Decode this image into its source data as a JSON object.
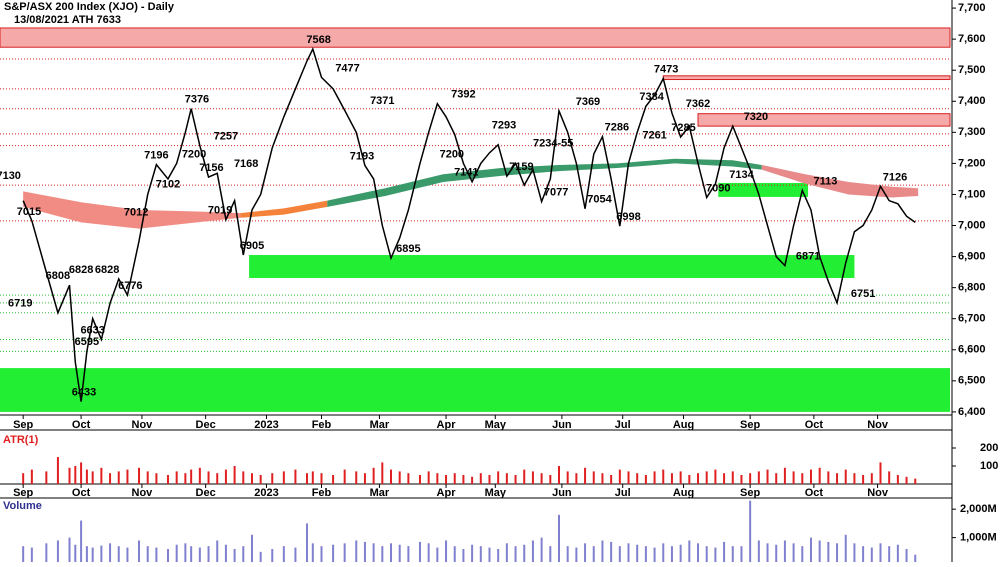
{
  "chart_data": {
    "type": "line",
    "title": "S&P/ASX 200 Index (XJO) - Daily",
    "subtitle": "13/08/2021 ATH 7633",
    "xlim": [
      -8,
      320
    ],
    "xticks": [
      {
        "value": 0,
        "label": "Sep"
      },
      {
        "value": 20,
        "label": "Oct"
      },
      {
        "value": 41,
        "label": "Nov"
      },
      {
        "value": 63,
        "label": "Dec"
      },
      {
        "value": 84,
        "label": "2023"
      },
      {
        "value": 103,
        "label": "Feb"
      },
      {
        "value": 123,
        "label": "Mar"
      },
      {
        "value": 146,
        "label": "Apr"
      },
      {
        "value": 163,
        "label": "May"
      },
      {
        "value": 186,
        "label": "Jun"
      },
      {
        "value": 207,
        "label": "Jul"
      },
      {
        "value": 228,
        "label": "Aug"
      },
      {
        "value": 251,
        "label": "Sep"
      },
      {
        "value": 273,
        "label": "Oct"
      },
      {
        "value": 295,
        "label": "Nov"
      }
    ],
    "ylim": [
      6390,
      7726
    ],
    "yticks": [
      {
        "value": 7700,
        "label": "7,700"
      },
      {
        "value": 7600,
        "label": "7,600"
      },
      {
        "value": 7500,
        "label": "7,500"
      },
      {
        "value": 7400,
        "label": "7,400"
      },
      {
        "value": 7300,
        "label": "7,300"
      },
      {
        "value": 7200,
        "label": "7,200"
      },
      {
        "value": 7100,
        "label": "7,100"
      },
      {
        "value": 7000,
        "label": "7,000"
      },
      {
        "value": 6900,
        "label": "6,900"
      },
      {
        "value": 6800,
        "label": "6,800"
      },
      {
        "value": 6700,
        "label": "6,700"
      },
      {
        "value": 6600,
        "label": "6,600"
      },
      {
        "value": 6500,
        "label": "6,500"
      },
      {
        "value": 6400,
        "label": "6,400"
      }
    ],
    "x": [
      0,
      3,
      8,
      12,
      16,
      18,
      20,
      22,
      24,
      27,
      30,
      33,
      36,
      40,
      43,
      46,
      50,
      53,
      56,
      58,
      61,
      64,
      67,
      70,
      73,
      76,
      79,
      82,
      86,
      90,
      94,
      98,
      100,
      103,
      107,
      111,
      115,
      118,
      121,
      124,
      127,
      130,
      133,
      137,
      140,
      143,
      146,
      149,
      152,
      155,
      158,
      161,
      164,
      167,
      170,
      173,
      176,
      179,
      182,
      185,
      188,
      191,
      194,
      197,
      200,
      203,
      206,
      209,
      212,
      215,
      218,
      221,
      224,
      227,
      230,
      233,
      236,
      239,
      242,
      245,
      248,
      251,
      254,
      257,
      260,
      263,
      266,
      269,
      272,
      275,
      278,
      281,
      284,
      287,
      290,
      293,
      296,
      299,
      302,
      305,
      308
    ],
    "series": [
      {
        "color": "#000000",
        "values": [
          7080,
          7015,
          6850,
          6719,
          6808,
          6560,
          6433,
          6595,
          6700,
          6633,
          6750,
          6828,
          6776,
          6950,
          7100,
          7196,
          7150,
          7200,
          7300,
          7376,
          7257,
          7156,
          7168,
          7019,
          7080,
          6905,
          7050,
          7100,
          7250,
          7350,
          7440,
          7530,
          7568,
          7477,
          7440,
          7371,
          7300,
          7193,
          7150,
          7000,
          6895,
          6960,
          7050,
          7200,
          7300,
          7392,
          7350,
          7293,
          7200,
          7141,
          7200,
          7234,
          7260,
          7159,
          7200,
          7130,
          7180,
          7077,
          7150,
          7369,
          7300,
          7200,
          7054,
          7230,
          7286,
          7150,
          6998,
          7200,
          7300,
          7384,
          7420,
          7473,
          7362,
          7285,
          7320,
          7200,
          7090,
          7134,
          7250,
          7320,
          7250,
          7180,
          7100,
          7000,
          6900,
          6871,
          7000,
          7113,
          7050,
          6900,
          6820,
          6751,
          6880,
          6980,
          7000,
          7050,
          7126,
          7080,
          7070,
          7030,
          7010
        ]
      }
    ],
    "ribbons": [
      {
        "color": "#f08c84",
        "x": [
          0,
          20,
          40,
          60,
          75
        ],
        "upper": [
          7110,
          7075,
          7050,
          7045,
          7040
        ],
        "lower": [
          7060,
          7010,
          6990,
          7010,
          7025
        ]
      },
      {
        "color": "#f5823a",
        "x": [
          75,
          90,
          105
        ],
        "upper": [
          7040,
          7055,
          7080
        ],
        "lower": [
          7025,
          7035,
          7060
        ]
      },
      {
        "color": "#3a9a6a",
        "x": [
          105,
          125,
          145,
          165,
          185,
          205,
          225,
          245,
          255
        ],
        "upper": [
          7080,
          7120,
          7165,
          7185,
          7195,
          7200,
          7215,
          7210,
          7195
        ],
        "lower": [
          7060,
          7095,
          7140,
          7160,
          7175,
          7185,
          7200,
          7190,
          7180
        ]
      },
      {
        "color": "#e88a8a",
        "x": [
          255,
          270,
          285,
          300,
          309
        ],
        "upper": [
          7195,
          7165,
          7140,
          7125,
          7120
        ],
        "lower": [
          7180,
          7135,
          7100,
          7090,
          7095
        ]
      }
    ],
    "zones": [
      {
        "from": -8,
        "to": 320,
        "low": 7574,
        "high": 7636,
        "color": "#f6a9a9"
      },
      {
        "from": 221,
        "to": 320,
        "low": 7470,
        "high": 7482,
        "color": "#f6a9a9"
      },
      {
        "from": 233,
        "to": 320,
        "low": 7320,
        "high": 7360,
        "color": "#f6a9a9"
      },
      {
        "from": 78,
        "to": 287,
        "low": 6831,
        "high": 6905,
        "color": "#22ee33"
      },
      {
        "from": 240,
        "to": 271,
        "low": 7092,
        "high": 7137,
        "color": "#22ee33"
      },
      {
        "from": -8,
        "to": 320,
        "low": 6400,
        "high": 6541,
        "color": "#22ee33"
      }
    ],
    "resistance_levels": {
      "color": "#d62020",
      "values": [
        7536,
        7440,
        7376,
        7295,
        7257,
        7130,
        7015
      ]
    },
    "support_levels": {
      "color": "#33bb33",
      "values": [
        6776,
        6751,
        6719,
        6633,
        6595
      ]
    },
    "annotations": [
      {
        "x": -5,
        "value": 7130
      },
      {
        "x": 2,
        "value": 7015
      },
      {
        "x": -1,
        "value": 6719
      },
      {
        "x": 12,
        "value": 6808
      },
      {
        "x": 20,
        "value": 6828
      },
      {
        "x": 29,
        "value": 6828
      },
      {
        "x": 37,
        "value": 6776
      },
      {
        "x": 24,
        "value": 6633
      },
      {
        "x": 22,
        "value": 6595
      },
      {
        "x": 21,
        "value": 6433
      },
      {
        "x": 39,
        "value": 7012
      },
      {
        "x": 50,
        "value": 7102
      },
      {
        "x": 46,
        "value": 7196
      },
      {
        "x": 59,
        "value": 7200
      },
      {
        "x": 65,
        "value": 7156
      },
      {
        "x": 60,
        "value": 7376
      },
      {
        "x": 70,
        "value": 7257
      },
      {
        "x": 77,
        "value": 7168
      },
      {
        "x": 68,
        "value": 7019
      },
      {
        "x": 79,
        "value": 6905
      },
      {
        "x": 102,
        "value": 7568
      },
      {
        "x": 112,
        "value": 7477
      },
      {
        "x": 124,
        "value": 7371
      },
      {
        "x": 117,
        "value": 7193
      },
      {
        "x": 133,
        "value": 6895
      },
      {
        "x": 152,
        "value": 7392
      },
      {
        "x": 166,
        "value": 7293
      },
      {
        "x": 183,
        "value": 7234,
        "label": "7234-55"
      },
      {
        "x": 148,
        "value": 7200
      },
      {
        "x": 153,
        "value": 7141
      },
      {
        "x": 172,
        "value": 7159
      },
      {
        "x": 184,
        "value": 7077
      },
      {
        "x": 199,
        "value": 7054
      },
      {
        "x": 209,
        "value": 6998
      },
      {
        "x": 195,
        "value": 7369
      },
      {
        "x": 205,
        "value": 7286
      },
      {
        "x": 218,
        "value": 7261
      },
      {
        "x": 217,
        "value": 7384
      },
      {
        "x": 222,
        "value": 7473
      },
      {
        "x": 233,
        "value": 7362
      },
      {
        "x": 228,
        "value": 7285
      },
      {
        "x": 240,
        "value": 7090
      },
      {
        "x": 248,
        "value": 7134
      },
      {
        "x": 253,
        "value": 7320
      },
      {
        "x": 277,
        "value": 7113
      },
      {
        "x": 271,
        "value": 6871
      },
      {
        "x": 290,
        "value": 6751
      },
      {
        "x": 301,
        "value": 7126
      }
    ],
    "atr": {
      "label": "ATR(1)",
      "color": "#e02020",
      "ylim": [
        0,
        300
      ],
      "yticks": [
        100,
        200
      ],
      "values": [
        60,
        80,
        70,
        150,
        90,
        100,
        120,
        80,
        70,
        90,
        60,
        70,
        80,
        90,
        70,
        60,
        50,
        70,
        60,
        80,
        90,
        70,
        60,
        80,
        100,
        70,
        60,
        50,
        60,
        70,
        80,
        60,
        70,
        60,
        50,
        80,
        70,
        60,
        90,
        120,
        80,
        70,
        60,
        50,
        70,
        60,
        50,
        60,
        50,
        40,
        60,
        50,
        70,
        60,
        50,
        80,
        70,
        60,
        50,
        100,
        70,
        60,
        90,
        70,
        60,
        50,
        80,
        70,
        60,
        50,
        70,
        80,
        60,
        70,
        50,
        60,
        70,
        80,
        60,
        70,
        50,
        60,
        70,
        80,
        60,
        90,
        70,
        60,
        80,
        90,
        70,
        60,
        80,
        60,
        50,
        60,
        120,
        70,
        50,
        40,
        30
      ]
    },
    "volume": {
      "label": "Volume",
      "color": "#8080d0",
      "ylim": [
        143,
        2393
      ],
      "yticks": [
        {
          "value": 2000,
          "label": "2,000M"
        },
        {
          "value": 1000,
          "label": "1,000M"
        }
      ],
      "values": [
        700,
        650,
        800,
        900,
        1000,
        750,
        1600,
        700,
        650,
        720,
        800,
        700,
        650,
        900,
        700,
        650,
        600,
        750,
        800,
        700,
        650,
        700,
        900,
        750,
        600,
        700,
        1100,
        500,
        600,
        700,
        650,
        1500,
        800,
        700,
        750,
        800,
        900,
        850,
        800,
        700,
        800,
        750,
        700,
        850,
        800,
        650,
        900,
        700,
        600,
        750,
        700,
        650,
        600,
        800,
        700,
        750,
        900,
        1000,
        700,
        1800,
        700,
        650,
        800,
        700,
        900,
        850,
        700,
        800,
        750,
        700,
        650,
        800,
        700,
        750,
        900,
        800,
        700,
        650,
        850,
        700,
        700,
        2300,
        900,
        800,
        750,
        900,
        800,
        700,
        1000,
        900,
        850,
        800,
        1100,
        800,
        700,
        650,
        800,
        700,
        750,
        600,
        400
      ]
    }
  }
}
